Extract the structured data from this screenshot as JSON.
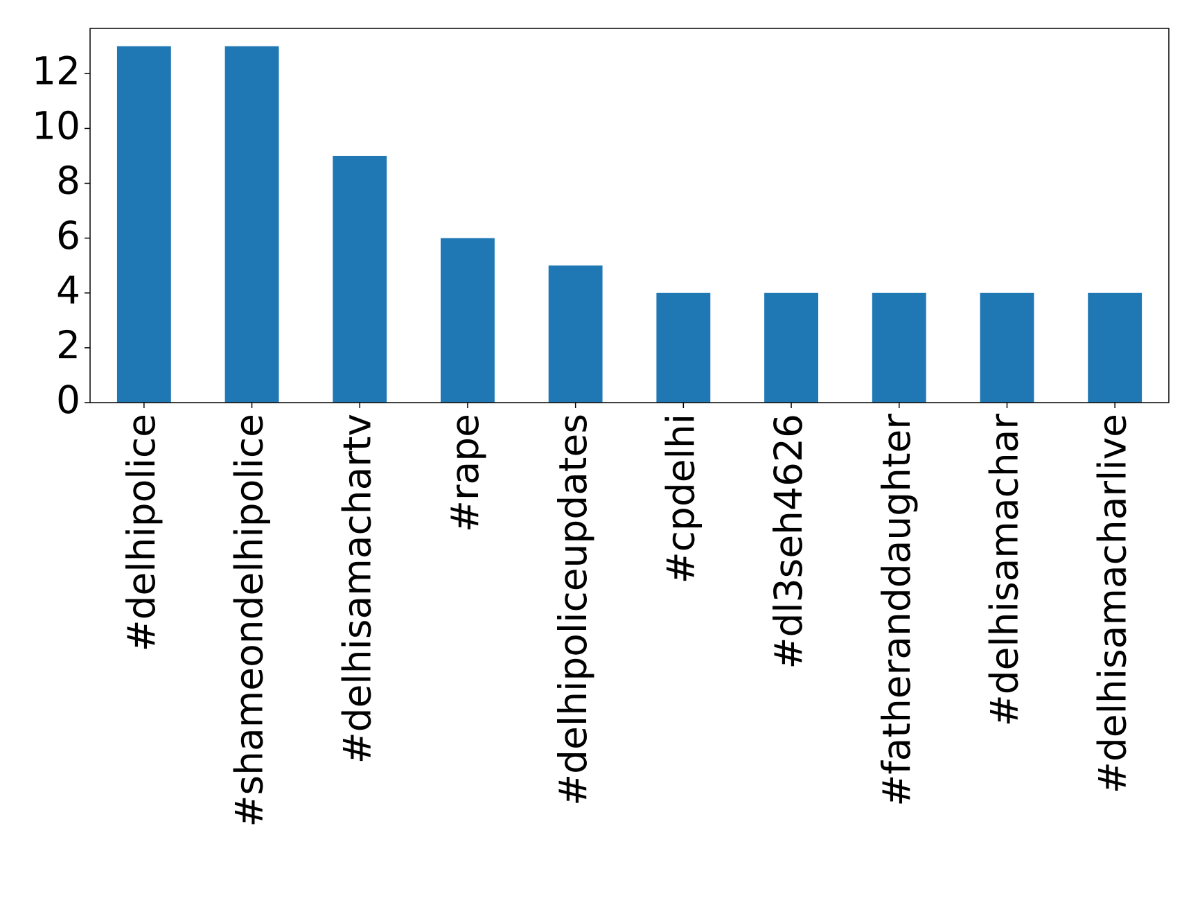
{
  "chart_data": {
    "type": "bar",
    "categories": [
      "#delhipolice",
      "#shameondelhipolice",
      "#delhisamachartv",
      "#rape",
      "#delhipoliceupdates",
      "#cpdelhi",
      "#dl3seh4626",
      "#fatheranddaughter",
      "#delhisamachar",
      "#delhisamacharlive"
    ],
    "values": [
      13,
      13,
      9,
      6,
      5,
      4,
      4,
      4,
      4,
      4
    ],
    "color": "#1f77b4",
    "ylim": [
      0,
      13.65
    ],
    "yticks": [
      0,
      2,
      4,
      6,
      8,
      10,
      12
    ],
    "grid": false
  }
}
